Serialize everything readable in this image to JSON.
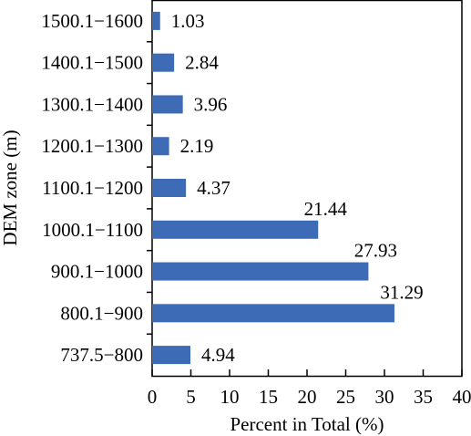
{
  "chart_data": {
    "type": "bar",
    "orientation": "horizontal",
    "categories": [
      "737.5−800",
      "800.1−900",
      "900.1−1000",
      "1000.1−1100",
      "1100.1−1200",
      "1200.1−1300",
      "1300.1−1400",
      "1400.1−1500",
      "1500.1−1600"
    ],
    "values": [
      4.94,
      31.29,
      27.93,
      21.44,
      4.37,
      2.19,
      3.96,
      2.84,
      1.03
    ],
    "data_labels": [
      "4.94",
      "31.29",
      "27.93",
      "21.44",
      "4.37",
      "2.19",
      "3.96",
      "2.84",
      "1.03"
    ],
    "xlabel": "Percent in Total (%)",
    "ylabel": "DEM zone (m)",
    "xlim": [
      0,
      40
    ],
    "xticks": [
      "0",
      "5",
      "10",
      "15",
      "20",
      "25",
      "30",
      "35",
      "40"
    ],
    "grid": false,
    "bar_color": "#3d6bb5"
  }
}
